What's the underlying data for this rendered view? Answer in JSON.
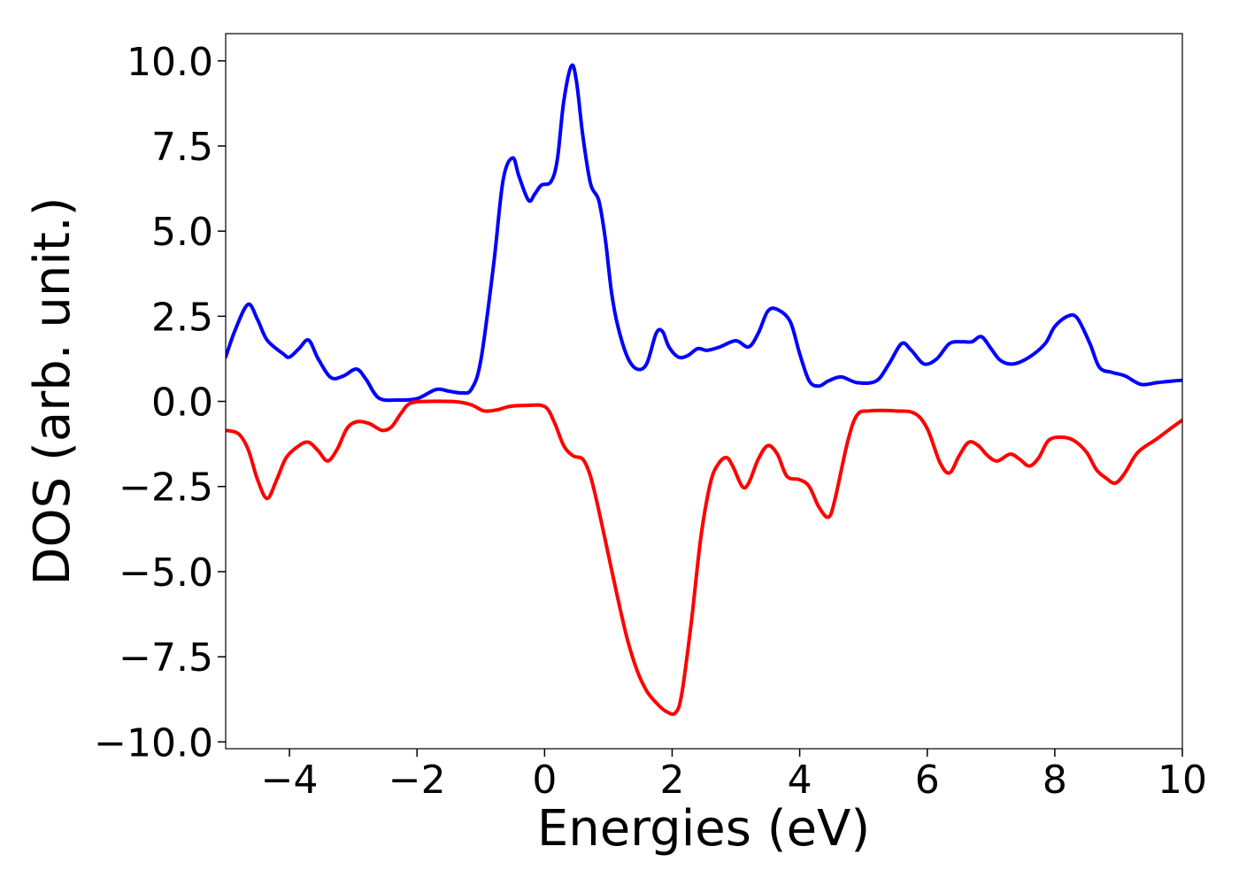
{
  "chart_data": {
    "type": "line",
    "xlabel": "Energies (eV)",
    "ylabel": "DOS (arb. unit.)",
    "xlim": [
      -5,
      10
    ],
    "ylim": [
      -10.2,
      10.8
    ],
    "xticks": [
      -4,
      -2,
      0,
      2,
      4,
      6,
      8,
      10
    ],
    "yticks": [
      10.0,
      7.5,
      5.0,
      2.5,
      0.0,
      -2.5,
      -5.0,
      -7.5,
      -10.0
    ],
    "xtick_labels": [
      "−4",
      "−2",
      "0",
      "2",
      "4",
      "6",
      "8",
      "10"
    ],
    "ytick_labels": [
      "10.0",
      "7.5",
      "5.0",
      "2.5",
      "0.0",
      "−2.5",
      "−5.0",
      "−7.5",
      "−10.0"
    ],
    "grid": false,
    "series": [
      {
        "color": "#0000ff",
        "points": [
          [
            -5.0,
            1.3
          ],
          [
            -4.85,
            2.1
          ],
          [
            -4.65,
            2.85
          ],
          [
            -4.5,
            2.4
          ],
          [
            -4.35,
            1.8
          ],
          [
            -4.1,
            1.4
          ],
          [
            -4.0,
            1.3
          ],
          [
            -3.85,
            1.55
          ],
          [
            -3.7,
            1.8
          ],
          [
            -3.55,
            1.25
          ],
          [
            -3.35,
            0.7
          ],
          [
            -3.15,
            0.75
          ],
          [
            -2.95,
            0.95
          ],
          [
            -2.8,
            0.65
          ],
          [
            -2.6,
            0.1
          ],
          [
            -2.3,
            0.04
          ],
          [
            -2.0,
            0.08
          ],
          [
            -1.7,
            0.35
          ],
          [
            -1.5,
            0.3
          ],
          [
            -1.3,
            0.25
          ],
          [
            -1.15,
            0.35
          ],
          [
            -1.0,
            1.2
          ],
          [
            -0.8,
            4.0
          ],
          [
            -0.65,
            6.5
          ],
          [
            -0.5,
            7.15
          ],
          [
            -0.4,
            6.6
          ],
          [
            -0.25,
            5.9
          ],
          [
            -0.15,
            6.1
          ],
          [
            -0.05,
            6.35
          ],
          [
            0.1,
            6.45
          ],
          [
            0.2,
            7.1
          ],
          [
            0.3,
            8.8
          ],
          [
            0.42,
            9.85
          ],
          [
            0.5,
            9.4
          ],
          [
            0.6,
            7.8
          ],
          [
            0.72,
            6.4
          ],
          [
            0.85,
            5.9
          ],
          [
            0.95,
            4.8
          ],
          [
            1.05,
            3.2
          ],
          [
            1.15,
            2.2
          ],
          [
            1.3,
            1.3
          ],
          [
            1.45,
            0.95
          ],
          [
            1.6,
            1.1
          ],
          [
            1.75,
            2.0
          ],
          [
            1.85,
            2.05
          ],
          [
            1.95,
            1.6
          ],
          [
            2.1,
            1.3
          ],
          [
            2.25,
            1.35
          ],
          [
            2.4,
            1.55
          ],
          [
            2.55,
            1.5
          ],
          [
            2.75,
            1.6
          ],
          [
            3.0,
            1.78
          ],
          [
            3.2,
            1.6
          ],
          [
            3.35,
            2.0
          ],
          [
            3.5,
            2.65
          ],
          [
            3.65,
            2.7
          ],
          [
            3.85,
            2.35
          ],
          [
            4.0,
            1.4
          ],
          [
            4.15,
            0.6
          ],
          [
            4.3,
            0.45
          ],
          [
            4.45,
            0.6
          ],
          [
            4.65,
            0.72
          ],
          [
            4.9,
            0.55
          ],
          [
            5.2,
            0.6
          ],
          [
            5.4,
            1.1
          ],
          [
            5.6,
            1.7
          ],
          [
            5.75,
            1.5
          ],
          [
            5.95,
            1.1
          ],
          [
            6.15,
            1.25
          ],
          [
            6.35,
            1.7
          ],
          [
            6.55,
            1.75
          ],
          [
            6.7,
            1.75
          ],
          [
            6.85,
            1.9
          ],
          [
            7.0,
            1.55
          ],
          [
            7.15,
            1.2
          ],
          [
            7.35,
            1.1
          ],
          [
            7.6,
            1.3
          ],
          [
            7.85,
            1.7
          ],
          [
            8.0,
            2.2
          ],
          [
            8.2,
            2.5
          ],
          [
            8.35,
            2.45
          ],
          [
            8.55,
            1.7
          ],
          [
            8.7,
            1.0
          ],
          [
            8.9,
            0.85
          ],
          [
            9.1,
            0.75
          ],
          [
            9.35,
            0.5
          ],
          [
            9.6,
            0.55
          ],
          [
            9.85,
            0.6
          ],
          [
            10.0,
            0.62
          ]
        ]
      },
      {
        "color": "#ff0000",
        "points": [
          [
            -5.0,
            -0.85
          ],
          [
            -4.8,
            -0.95
          ],
          [
            -4.65,
            -1.4
          ],
          [
            -4.5,
            -2.3
          ],
          [
            -4.35,
            -2.85
          ],
          [
            -4.2,
            -2.3
          ],
          [
            -4.05,
            -1.65
          ],
          [
            -3.85,
            -1.3
          ],
          [
            -3.7,
            -1.2
          ],
          [
            -3.55,
            -1.45
          ],
          [
            -3.4,
            -1.75
          ],
          [
            -3.25,
            -1.4
          ],
          [
            -3.1,
            -0.8
          ],
          [
            -2.95,
            -0.6
          ],
          [
            -2.75,
            -0.65
          ],
          [
            -2.55,
            -0.85
          ],
          [
            -2.4,
            -0.75
          ],
          [
            -2.25,
            -0.35
          ],
          [
            -2.1,
            -0.05
          ],
          [
            -1.8,
            0.0
          ],
          [
            -1.4,
            -0.01
          ],
          [
            -1.15,
            -0.1
          ],
          [
            -0.95,
            -0.28
          ],
          [
            -0.75,
            -0.25
          ],
          [
            -0.55,
            -0.15
          ],
          [
            -0.3,
            -0.12
          ],
          [
            0.0,
            -0.15
          ],
          [
            0.15,
            -0.6
          ],
          [
            0.3,
            -1.3
          ],
          [
            0.45,
            -1.6
          ],
          [
            0.6,
            -1.7
          ],
          [
            0.72,
            -2.2
          ],
          [
            0.85,
            -3.2
          ],
          [
            1.0,
            -4.5
          ],
          [
            1.15,
            -5.8
          ],
          [
            1.3,
            -7.0
          ],
          [
            1.45,
            -7.9
          ],
          [
            1.6,
            -8.5
          ],
          [
            1.75,
            -8.85
          ],
          [
            1.9,
            -9.1
          ],
          [
            2.05,
            -9.15
          ],
          [
            2.15,
            -8.6
          ],
          [
            2.3,
            -6.5
          ],
          [
            2.45,
            -4.0
          ],
          [
            2.6,
            -2.4
          ],
          [
            2.72,
            -1.85
          ],
          [
            2.85,
            -1.65
          ],
          [
            2.95,
            -1.9
          ],
          [
            3.1,
            -2.5
          ],
          [
            3.2,
            -2.4
          ],
          [
            3.35,
            -1.7
          ],
          [
            3.5,
            -1.3
          ],
          [
            3.65,
            -1.55
          ],
          [
            3.8,
            -2.2
          ],
          [
            4.0,
            -2.3
          ],
          [
            4.15,
            -2.5
          ],
          [
            4.3,
            -3.1
          ],
          [
            4.45,
            -3.4
          ],
          [
            4.55,
            -2.9
          ],
          [
            4.75,
            -1.2
          ],
          [
            4.9,
            -0.4
          ],
          [
            5.1,
            -0.28
          ],
          [
            5.5,
            -0.28
          ],
          [
            5.8,
            -0.35
          ],
          [
            6.0,
            -0.8
          ],
          [
            6.2,
            -1.8
          ],
          [
            6.35,
            -2.1
          ],
          [
            6.5,
            -1.6
          ],
          [
            6.65,
            -1.2
          ],
          [
            6.8,
            -1.3
          ],
          [
            6.95,
            -1.6
          ],
          [
            7.1,
            -1.75
          ],
          [
            7.3,
            -1.55
          ],
          [
            7.45,
            -1.7
          ],
          [
            7.6,
            -1.9
          ],
          [
            7.75,
            -1.65
          ],
          [
            7.9,
            -1.15
          ],
          [
            8.1,
            -1.05
          ],
          [
            8.3,
            -1.15
          ],
          [
            8.5,
            -1.5
          ],
          [
            8.65,
            -2.0
          ],
          [
            8.8,
            -2.25
          ],
          [
            8.95,
            -2.4
          ],
          [
            9.1,
            -2.1
          ],
          [
            9.3,
            -1.5
          ],
          [
            9.6,
            -1.1
          ],
          [
            9.85,
            -0.75
          ],
          [
            10.0,
            -0.55
          ]
        ]
      }
    ]
  }
}
